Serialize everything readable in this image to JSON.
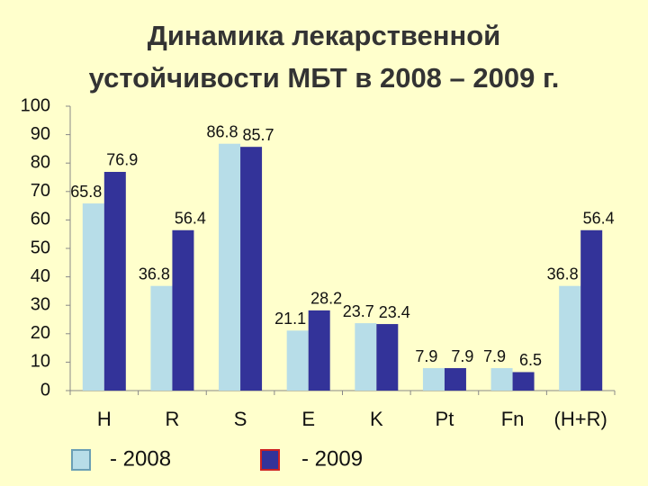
{
  "chart_data": {
    "type": "bar",
    "title": [
      "Динамика лекарственной",
      "устойчивости МБТ в 2008 – 2009 г."
    ],
    "categories": [
      "H",
      "R",
      "S",
      "E",
      "K",
      "Pt",
      "Fn",
      "(H+R)"
    ],
    "series": [
      {
        "name": "- 2008",
        "color": "#b7dde8",
        "values": [
          65.8,
          36.8,
          86.8,
          21.1,
          23.7,
          7.9,
          7.9,
          36.8
        ]
      },
      {
        "name": "- 2009",
        "color": "#333399",
        "values": [
          76.9,
          56.4,
          85.7,
          28.2,
          23.4,
          7.9,
          6.5,
          56.4
        ]
      }
    ],
    "ylim": [
      0,
      100
    ],
    "yticks": [
      0,
      10,
      20,
      30,
      40,
      50,
      60,
      70,
      80,
      90,
      100
    ],
    "grid": false,
    "legend": "bottom"
  }
}
